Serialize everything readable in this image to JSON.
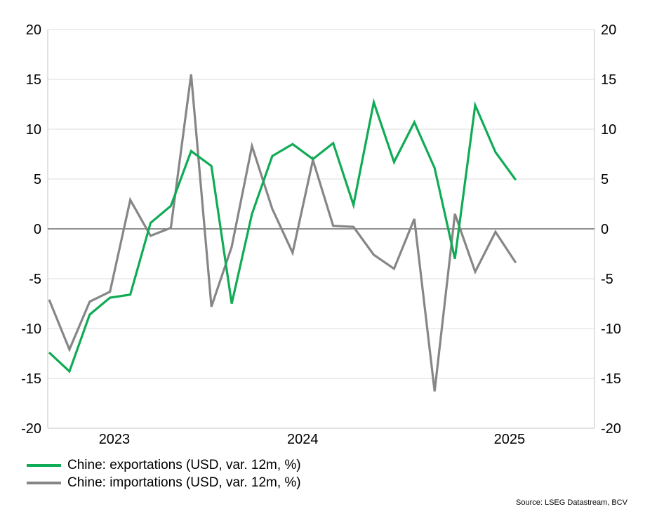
{
  "chart_data": {
    "type": "line",
    "title": "",
    "xlabel": "",
    "ylabel": "",
    "x": [
      "2023-06",
      "2023-07",
      "2023-08",
      "2023-09",
      "2023-10",
      "2023-11",
      "2023-12",
      "2024-01",
      "2024-02",
      "2024-03",
      "2024-04",
      "2024-05",
      "2024-06",
      "2024-07",
      "2024-08",
      "2024-09",
      "2024-10",
      "2024-11",
      "2024-12",
      "2025-01",
      "2025-02",
      "2025-03",
      "2025-04",
      "2025-05"
    ],
    "x_tick_labels": [
      "2023",
      "2024",
      "2025"
    ],
    "series": [
      {
        "name": "Chine: exportations (USD, var. 12m, %)",
        "color": "#0fab55",
        "values": [
          -12.4,
          -14.3,
          -8.6,
          -6.9,
          -6.6,
          0.6,
          2.3,
          7.8,
          6.3,
          -7.5,
          1.5,
          7.3,
          8.5,
          7.0,
          8.6,
          2.4,
          12.7,
          6.7,
          10.7,
          6.1,
          -3.0,
          12.4,
          7.7,
          4.9
        ]
      },
      {
        "name": "Chine: importations (USD, var. 12m, %)",
        "color": "#868686",
        "values": [
          -7.1,
          -12.1,
          -7.3,
          -6.3,
          2.9,
          -0.7,
          0.1,
          15.5,
          -7.8,
          -1.8,
          8.3,
          2.0,
          -2.4,
          6.9,
          0.3,
          0.2,
          -2.6,
          -4.0,
          1.0,
          -16.3,
          1.5,
          -4.3,
          -0.3,
          -3.4
        ]
      }
    ],
    "ylim": [
      -20,
      20
    ],
    "yticks": [
      -20,
      -15,
      -10,
      -5,
      0,
      5,
      10,
      15,
      20
    ],
    "grid": "horizontal",
    "dual_y_axis": true,
    "legend_position": "bottom-left",
    "colors": {
      "gridline": "#dcdcdc",
      "plot_border": "#c6c6c6",
      "zero_line": "#6d6d6d",
      "text": "#000000"
    }
  },
  "source_note": "Source: LSEG Datastream, BCV"
}
